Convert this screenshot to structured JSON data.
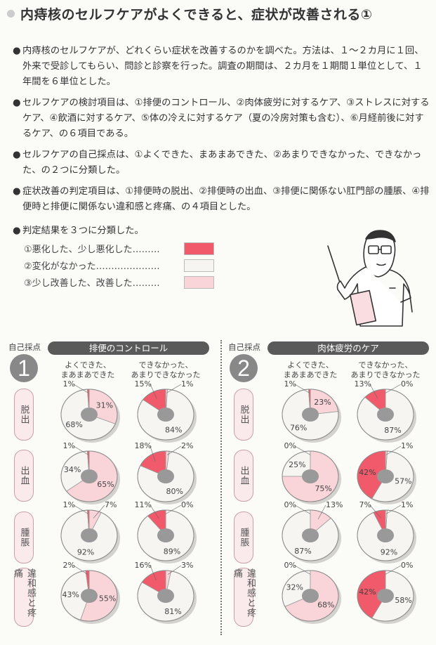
{
  "title": "内痔核のセルフケアがよくできると、症状が改善される①",
  "paragraphs": [
    {
      "bullet": "●",
      "text": "内痔核のセルフケアが、どれくらい症状を改善するのかを調べた。方法は、１～２カ月に１回、外来で受診してもらい、問診と診察を行った。調査の期間は、２カ月を１期間１単位として、１年間を６単位とした。"
    },
    {
      "bullet": "●",
      "text": "セルフケアの検討項目は、①排便のコントロール、②肉体疲労に対するケア、③ストレスに対するケア、④飲酒に対するケア、⑤体の冷えに対するケア（夏の冷房対策も含む）、⑥月経前後に対するケア、の６項目である。"
    },
    {
      "bullet": "●",
      "text": "セルフケアの自己採点は、①よくできた、まあまあできた、②あまりできなかった、できなかった、の２つに分類した。"
    },
    {
      "bullet": "●",
      "text": "症状改善の判定項目は、①排便時の脱出、②排便時の出血、③排便に関係ない肛門部の腫脹、④排便時と排便に関係ない違和感と疼痛、の４項目とした。"
    },
    {
      "bullet": "●",
      "text": "判定結果を３つに分類した。"
    }
  ],
  "legend": [
    {
      "label": "①悪化した、少し悪化した………",
      "color": "#f05a6a"
    },
    {
      "label": "②変化がなかった…………………",
      "color": "#f6f5f2"
    },
    {
      "label": "③少し改善した、改善した………",
      "color": "#f9d5da"
    }
  ],
  "illustration": "doctor-with-pointer",
  "chart_data": {
    "type": "pie",
    "colors": {
      "worsened": "#f05a6a",
      "no_change": "#f6f5f2",
      "improved": "#f9d5da",
      "hole": "#999999"
    },
    "score_label": "自己採点",
    "panels": [
      {
        "number": "1",
        "title": "排便のコントロール",
        "columns": [
          "よくできた、\nまあまあできた",
          "できなかった、\nあまりできなかった"
        ],
        "rows": [
          {
            "label": "脱出",
            "pies": [
              {
                "worsened": 1,
                "no_change": 68,
                "improved": 31
              },
              {
                "worsened": 15,
                "no_change": 84,
                "improved": 1
              }
            ]
          },
          {
            "label": "出血",
            "pies": [
              {
                "worsened": 1,
                "no_change": 34,
                "improved": 65
              },
              {
                "worsened": 18,
                "no_change": 80,
                "improved": 2
              }
            ]
          },
          {
            "label": "腫脹",
            "pies": [
              {
                "worsened": 1,
                "no_change": 92,
                "improved": 7
              },
              {
                "worsened": 11,
                "no_change": 89,
                "improved": 0
              }
            ]
          },
          {
            "label": "違和感と疼痛",
            "pies": [
              {
                "worsened": 2,
                "no_change": 43,
                "improved": 55
              },
              {
                "worsened": 16,
                "no_change": 81,
                "improved": 3
              }
            ]
          }
        ]
      },
      {
        "number": "2",
        "title": "肉体疲労のケア",
        "columns": [
          "よくできた、\nまあまあできた",
          "できなかった、\nあまりできなかった"
        ],
        "rows": [
          {
            "label": "脱出",
            "pies": [
              {
                "worsened": 1,
                "no_change": 76,
                "improved": 23
              },
              {
                "worsened": 13,
                "no_change": 87,
                "improved": 0
              }
            ]
          },
          {
            "label": "出血",
            "pies": [
              {
                "worsened": 0,
                "no_change": 25,
                "improved": 75
              },
              {
                "worsened": 42,
                "no_change": 57,
                "improved": 1
              }
            ]
          },
          {
            "label": "腫脹",
            "pies": [
              {
                "worsened": 0,
                "no_change": 87,
                "improved": 13
              },
              {
                "worsened": 7,
                "no_change": 92,
                "improved": 1
              }
            ]
          },
          {
            "label": "違和感と疼痛",
            "pies": [
              {
                "worsened": 0,
                "no_change": 32,
                "improved": 68
              },
              {
                "worsened": 42,
                "no_change": 58,
                "improved": 0
              }
            ]
          }
        ]
      }
    ]
  }
}
